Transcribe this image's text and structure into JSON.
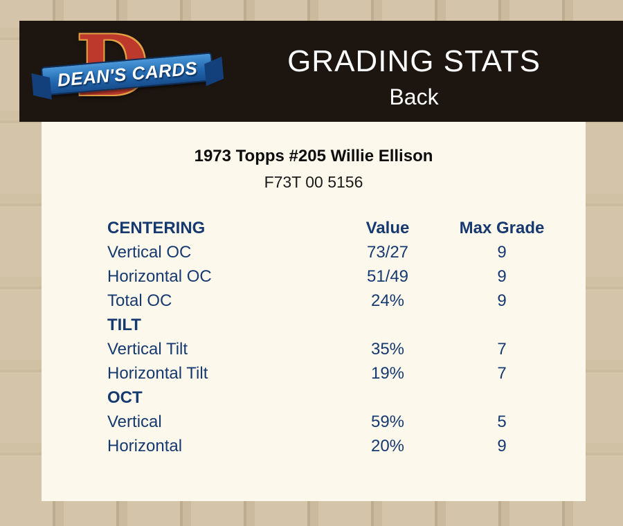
{
  "header": {
    "logo_initial": "D",
    "logo_text": "DEAN'S CARDS",
    "title": "GRADING STATS",
    "subtitle": "Back"
  },
  "card": {
    "title": "1973 Topps #205 Willie Ellison",
    "code": "F73T 00 5156"
  },
  "table": {
    "columns": {
      "value": "Value",
      "max_grade": "Max Grade"
    },
    "sections": [
      {
        "name": "CENTERING",
        "rows": [
          {
            "label": "Vertical OC",
            "value": "73/27",
            "max_grade": "9"
          },
          {
            "label": "Horizontal OC",
            "value": "51/49",
            "max_grade": "9"
          },
          {
            "label": "Total OC",
            "value": "24%",
            "max_grade": "9"
          }
        ]
      },
      {
        "name": "TILT",
        "rows": [
          {
            "label": "Vertical Tilt",
            "value": "35%",
            "max_grade": "7"
          },
          {
            "label": "Horizontal Tilt",
            "value": "19%",
            "max_grade": "7"
          }
        ]
      },
      {
        "name": "OCT",
        "rows": [
          {
            "label": "Vertical",
            "value": "59%",
            "max_grade": "5"
          },
          {
            "label": "Horizontal",
            "value": "20%",
            "max_grade": "9"
          }
        ]
      }
    ]
  },
  "colors": {
    "page_background": "#c3b192",
    "header_background": "#1d1510",
    "panel_background": "#fdf8ec",
    "table_text": "#16396f",
    "header_text": "#ffffff",
    "logo_red": "#bc392c",
    "logo_gold": "#e2a244",
    "logo_banner_blue": "#2268b0"
  }
}
